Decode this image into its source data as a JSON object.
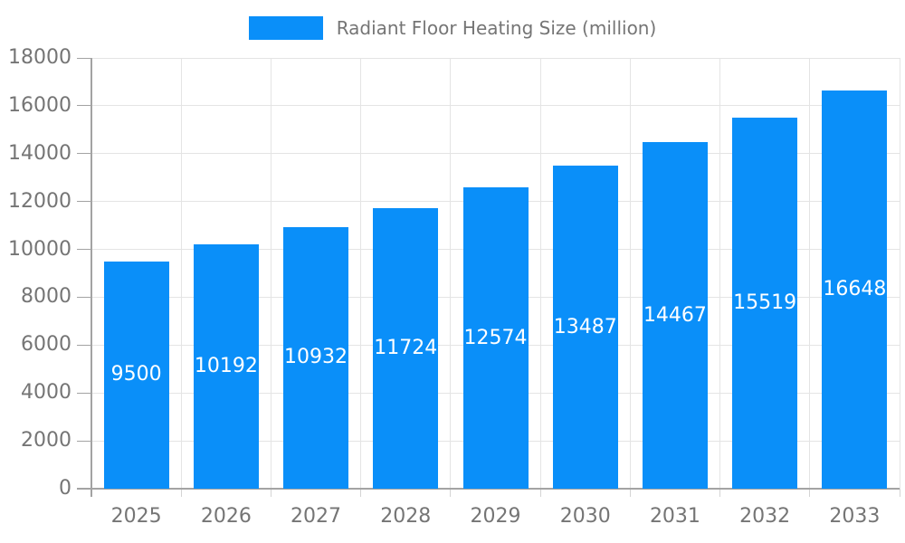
{
  "legend": {
    "label": "Radiant Floor Heating Size (million)"
  },
  "colors": {
    "bar": "#0a8ff9",
    "grid": "#e4e4e4",
    "axis": "#a3a3a3",
    "bottom_tick": "#d4d4d4",
    "tick_text": "#757575",
    "bar_label": "#ffffff",
    "background": "#ffffff"
  },
  "chart_data": {
    "type": "bar",
    "title": "",
    "xlabel": "",
    "ylabel": "",
    "categories": [
      "2025",
      "2026",
      "2027",
      "2028",
      "2029",
      "2030",
      "2031",
      "2032",
      "2033"
    ],
    "series": [
      {
        "name": "Radiant Floor Heating Size (million)",
        "values": [
          9500,
          10192,
          10932,
          11724,
          12574,
          13487,
          14467,
          15519,
          16648
        ]
      }
    ],
    "yticks": [
      0,
      2000,
      4000,
      6000,
      8000,
      10000,
      12000,
      14000,
      16000,
      18000
    ],
    "ylim": [
      0,
      18000
    ],
    "grid": true,
    "legend_position": "top-center",
    "value_labels": "inside-center-white"
  }
}
